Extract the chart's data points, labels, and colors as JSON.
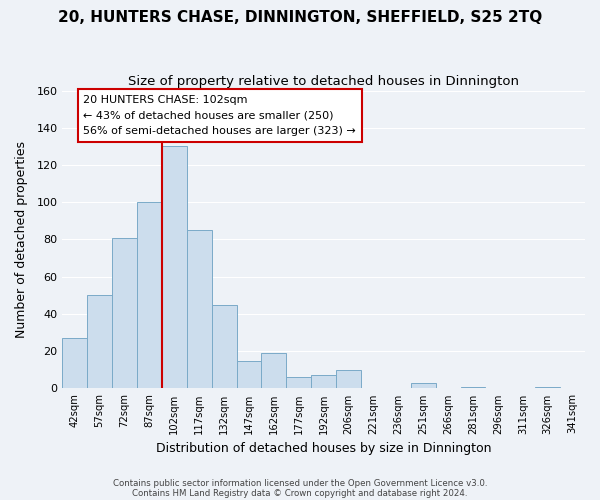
{
  "title": "20, HUNTERS CHASE, DINNINGTON, SHEFFIELD, S25 2TQ",
  "subtitle": "Size of property relative to detached houses in Dinnington",
  "xlabel": "Distribution of detached houses by size in Dinnington",
  "ylabel": "Number of detached properties",
  "bar_labels": [
    "42sqm",
    "57sqm",
    "72sqm",
    "87sqm",
    "102sqm",
    "117sqm",
    "132sqm",
    "147sqm",
    "162sqm",
    "177sqm",
    "192sqm",
    "206sqm",
    "221sqm",
    "236sqm",
    "251sqm",
    "266sqm",
    "281sqm",
    "296sqm",
    "311sqm",
    "326sqm",
    "341sqm"
  ],
  "bar_values": [
    27,
    50,
    81,
    100,
    130,
    85,
    45,
    15,
    19,
    6,
    7,
    10,
    0,
    0,
    3,
    0,
    1,
    0,
    0,
    1,
    0
  ],
  "bar_color": "#ccdded",
  "bar_edge_color": "#7aaac8",
  "vline_color": "#cc0000",
  "ylim": [
    0,
    160
  ],
  "yticks": [
    0,
    20,
    40,
    60,
    80,
    100,
    120,
    140,
    160
  ],
  "annotation_title": "20 HUNTERS CHASE: 102sqm",
  "annotation_line1": "← 43% of detached houses are smaller (250)",
  "annotation_line2": "56% of semi-detached houses are larger (323) →",
  "annotation_box_color": "#ffffff",
  "annotation_box_edge": "#cc0000",
  "footer_line1": "Contains HM Land Registry data © Crown copyright and database right 2024.",
  "footer_line2": "Contains public sector information licensed under the Open Government Licence v3.0.",
  "background_color": "#eef2f7",
  "grid_color": "#ffffff",
  "title_fontsize": 11,
  "subtitle_fontsize": 9.5,
  "vline_bar_index": 4
}
